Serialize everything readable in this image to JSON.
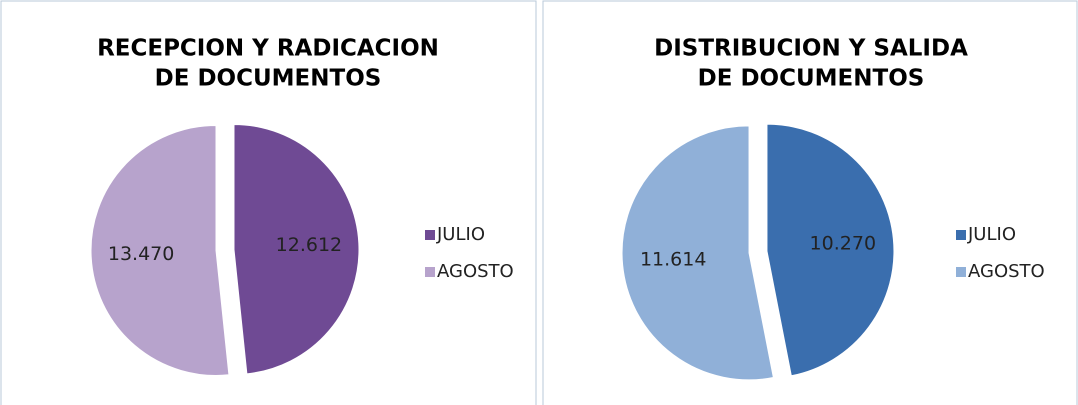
{
  "chart_data": [
    {
      "type": "pie",
      "title": [
        "RECEPCION Y RADICACION",
        "DE DOCUMENTOS"
      ],
      "categories": [
        "JULIO",
        "AGOSTO"
      ],
      "values": [
        12612,
        13470
      ],
      "value_labels": [
        "12.612",
        "13.470"
      ],
      "colors": [
        "#6f4a94",
        "#b7a3cc"
      ],
      "legend": "right"
    },
    {
      "type": "pie",
      "title": [
        "DISTRIBUCION Y SALIDA",
        "DE DOCUMENTOS"
      ],
      "categories": [
        "JULIO",
        "AGOSTO"
      ],
      "values": [
        10270,
        11614
      ],
      "value_labels": [
        "10.270",
        "11.614"
      ],
      "colors": [
        "#3a6eae",
        "#90b0d8"
      ],
      "legend": "right"
    }
  ]
}
